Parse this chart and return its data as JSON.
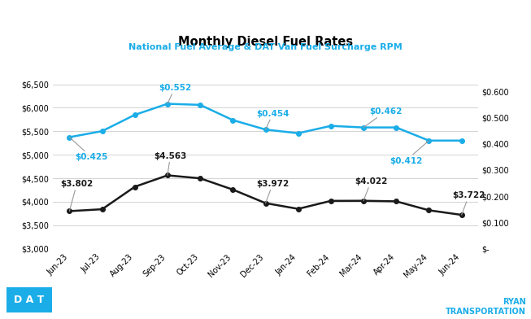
{
  "title": "Monthly Diesel Fuel Rates",
  "subtitle": "National Fuel Average & DAT Van Fuel Surcharge RPM",
  "categories": [
    "Jun-23",
    "Jul-23",
    "Aug-23",
    "Sep-23",
    "Oct-23",
    "Nov-23",
    "Dec-23",
    "Jan-24",
    "Feb-24",
    "Mar-24",
    "Apr-24",
    "May-24",
    "Jun-24"
  ],
  "fuel_price": [
    3.802,
    3.842,
    4.32,
    4.563,
    4.5,
    4.26,
    3.972,
    3.85,
    4.02,
    4.022,
    4.01,
    3.82,
    3.722
  ],
  "fsc_rpm": [
    0.425,
    0.448,
    0.51,
    0.552,
    0.548,
    0.49,
    0.454,
    0.44,
    0.468,
    0.462,
    0.462,
    0.412,
    0.412
  ],
  "fuel_price_annotations": {
    "0": "$3.802",
    "3": "$4.563",
    "6": "$3.972",
    "9": "$4.022",
    "12": "$3.722"
  },
  "fsc_annotations": {
    "0": "$0.425",
    "3": "$0.552",
    "6": "$0.454",
    "9": "$0.462",
    "11": "$0.412"
  },
  "fuel_color": "#1a1a1a",
  "fsc_color": "#1aade8",
  "subtitle_color": "#1aade8",
  "grid_color": "#cccccc",
  "background_color": "#ffffff",
  "left_ylim": [
    3.0,
    6.8
  ],
  "right_ylim": [
    0.0,
    0.68
  ],
  "left_yticks": [
    3.0,
    3.5,
    4.0,
    4.5,
    5.0,
    5.5,
    6.0,
    6.5
  ],
  "right_yticks": [
    0.0,
    0.1,
    0.2,
    0.3,
    0.4,
    0.5,
    0.6
  ],
  "dat_logo_color": "#1aade8",
  "ryan_color": "#1aade8"
}
